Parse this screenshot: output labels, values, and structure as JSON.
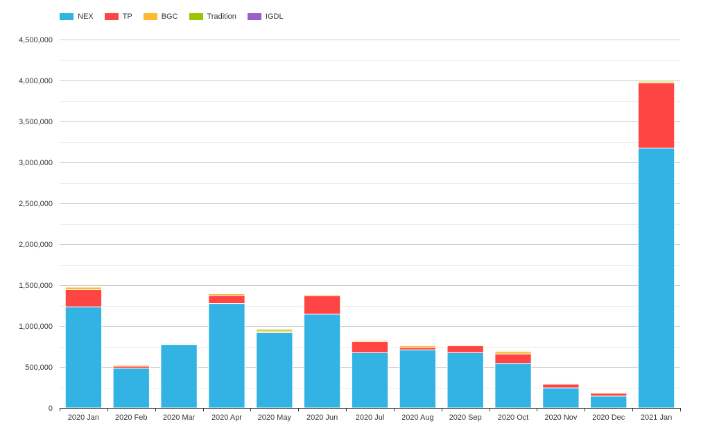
{
  "chart_data": {
    "type": "bar",
    "stacked": true,
    "categories": [
      "2020 Jan",
      "2020 Feb",
      "2020 Mar",
      "2020 Apr",
      "2020 May",
      "2020 Jun",
      "2020 Jul",
      "2020 Aug",
      "2020 Sep",
      "2020 Oct",
      "2020 Nov",
      "2020 Dec",
      "2021 Jan"
    ],
    "series": [
      {
        "name": "NEX",
        "color": "#33b2e4",
        "values": [
          1235000,
          485000,
          775000,
          1275000,
          920000,
          1145000,
          675000,
          710000,
          675000,
          545000,
          245000,
          145000,
          3175000
        ]
      },
      {
        "name": "TP",
        "color": "#ff4444",
        "values": [
          210000,
          25000,
          0,
          100000,
          0,
          225000,
          135000,
          30000,
          85000,
          115000,
          45000,
          35000,
          795000
        ]
      },
      {
        "name": "BGC",
        "color": "#ffb92e",
        "values": [
          30000,
          15000,
          10000,
          20000,
          20000,
          15000,
          15000,
          20000,
          10000,
          30000,
          10000,
          10000,
          15000
        ]
      },
      {
        "name": "Tradition",
        "color": "#99c600",
        "values": [
          0,
          0,
          10000,
          0,
          20000,
          0,
          0,
          0,
          0,
          10000,
          0,
          0,
          15000
        ]
      },
      {
        "name": "IGDL",
        "color": "#9b5fc9",
        "values": [
          0,
          0,
          0,
          0,
          0,
          0,
          0,
          0,
          0,
          0,
          0,
          0,
          0
        ]
      }
    ],
    "ylim": [
      0,
      4500000
    ],
    "yticks": [
      "0",
      "500,000",
      "1,000,000",
      "1,500,000",
      "2,000,000",
      "2,500,000",
      "3,000,000",
      "3,500,000",
      "4,000,000",
      "4,500,000"
    ],
    "grid": true,
    "legend_position": "top-left"
  }
}
